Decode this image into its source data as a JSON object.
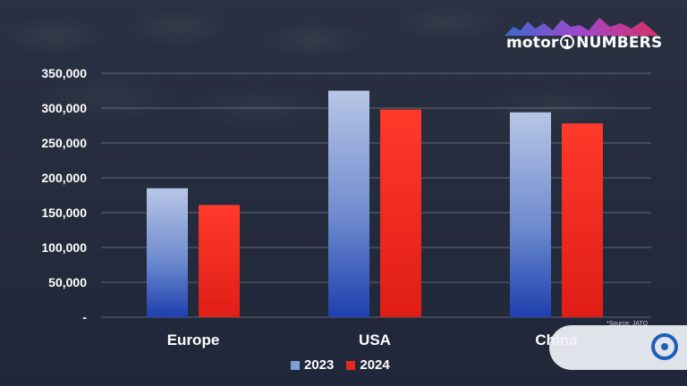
{
  "logo": {
    "word": "motor",
    "numeral": "1",
    "suffix": "NUMBERS"
  },
  "source_note": "*Source: JATO",
  "colors": {
    "series_2023": "#7f9fd6",
    "series_2024": "#e8281f"
  },
  "chart_data": {
    "type": "bar",
    "categories": [
      "Europe",
      "USA",
      "China"
    ],
    "series": [
      {
        "name": "2023",
        "values": [
          185000,
          325000,
          294000
        ]
      },
      {
        "name": "2024",
        "values": [
          161000,
          298000,
          278000
        ]
      }
    ],
    "y_ticks": [
      "-",
      "50,000",
      "100,000",
      "150,000",
      "200,000",
      "250,000",
      "300,000",
      "350,000"
    ],
    "ylim": [
      0,
      350000
    ],
    "grid": true,
    "legend": "bottom-center"
  }
}
